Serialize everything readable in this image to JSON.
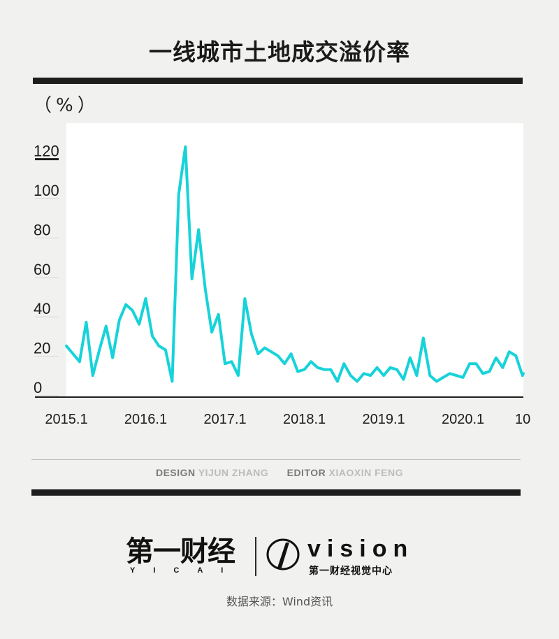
{
  "header": {
    "title": "一线城市土地成交溢价率",
    "unit": "（%）"
  },
  "credits": {
    "design_key": "DESIGN",
    "design_name": "YIJUN ZHANG",
    "editor_key": "EDITOR",
    "editor_name": "XIAOXIN FENG"
  },
  "brand": {
    "yicai_cn": "第一财经",
    "yicai_en": "YICAI",
    "vision_word": "vision",
    "vision_sub": "第一财经视觉中心"
  },
  "source": "数据来源：Wind资讯",
  "colors": {
    "line": "#16d3d9",
    "ink": "#1d1d1d",
    "bg": "#f1f1ef"
  },
  "chart_data": {
    "type": "line",
    "title": "一线城市土地成交溢价率",
    "ylabel": "（%）",
    "ylim": [
      0,
      120
    ],
    "yticks": [
      0,
      20,
      40,
      60,
      80,
      100,
      120
    ],
    "x_tick_labels": [
      "2015.1",
      "2016.1",
      "2017.1",
      "2018.1",
      "2019.1",
      "2020.1",
      "10"
    ],
    "x_tick_month_index": [
      0,
      12,
      24,
      36,
      48,
      60,
      69
    ],
    "grid": false,
    "series": [
      {
        "values": [
          21,
          17,
          13,
          33,
          6,
          19,
          31,
          15,
          34,
          42,
          39,
          32,
          45,
          26,
          21,
          19,
          3,
          98,
          122,
          55,
          80,
          50,
          28,
          37,
          12,
          13,
          6,
          45,
          27,
          17,
          20,
          18,
          16,
          12,
          17,
          8,
          9,
          13,
          10,
          9,
          9,
          3,
          12,
          6,
          3,
          7,
          6,
          10,
          6,
          10,
          9,
          4,
          15,
          6,
          25,
          6,
          3,
          5,
          7,
          6,
          5,
          12,
          12,
          7,
          8,
          15,
          10,
          18,
          16,
          6,
          7
        ]
      }
    ]
  }
}
